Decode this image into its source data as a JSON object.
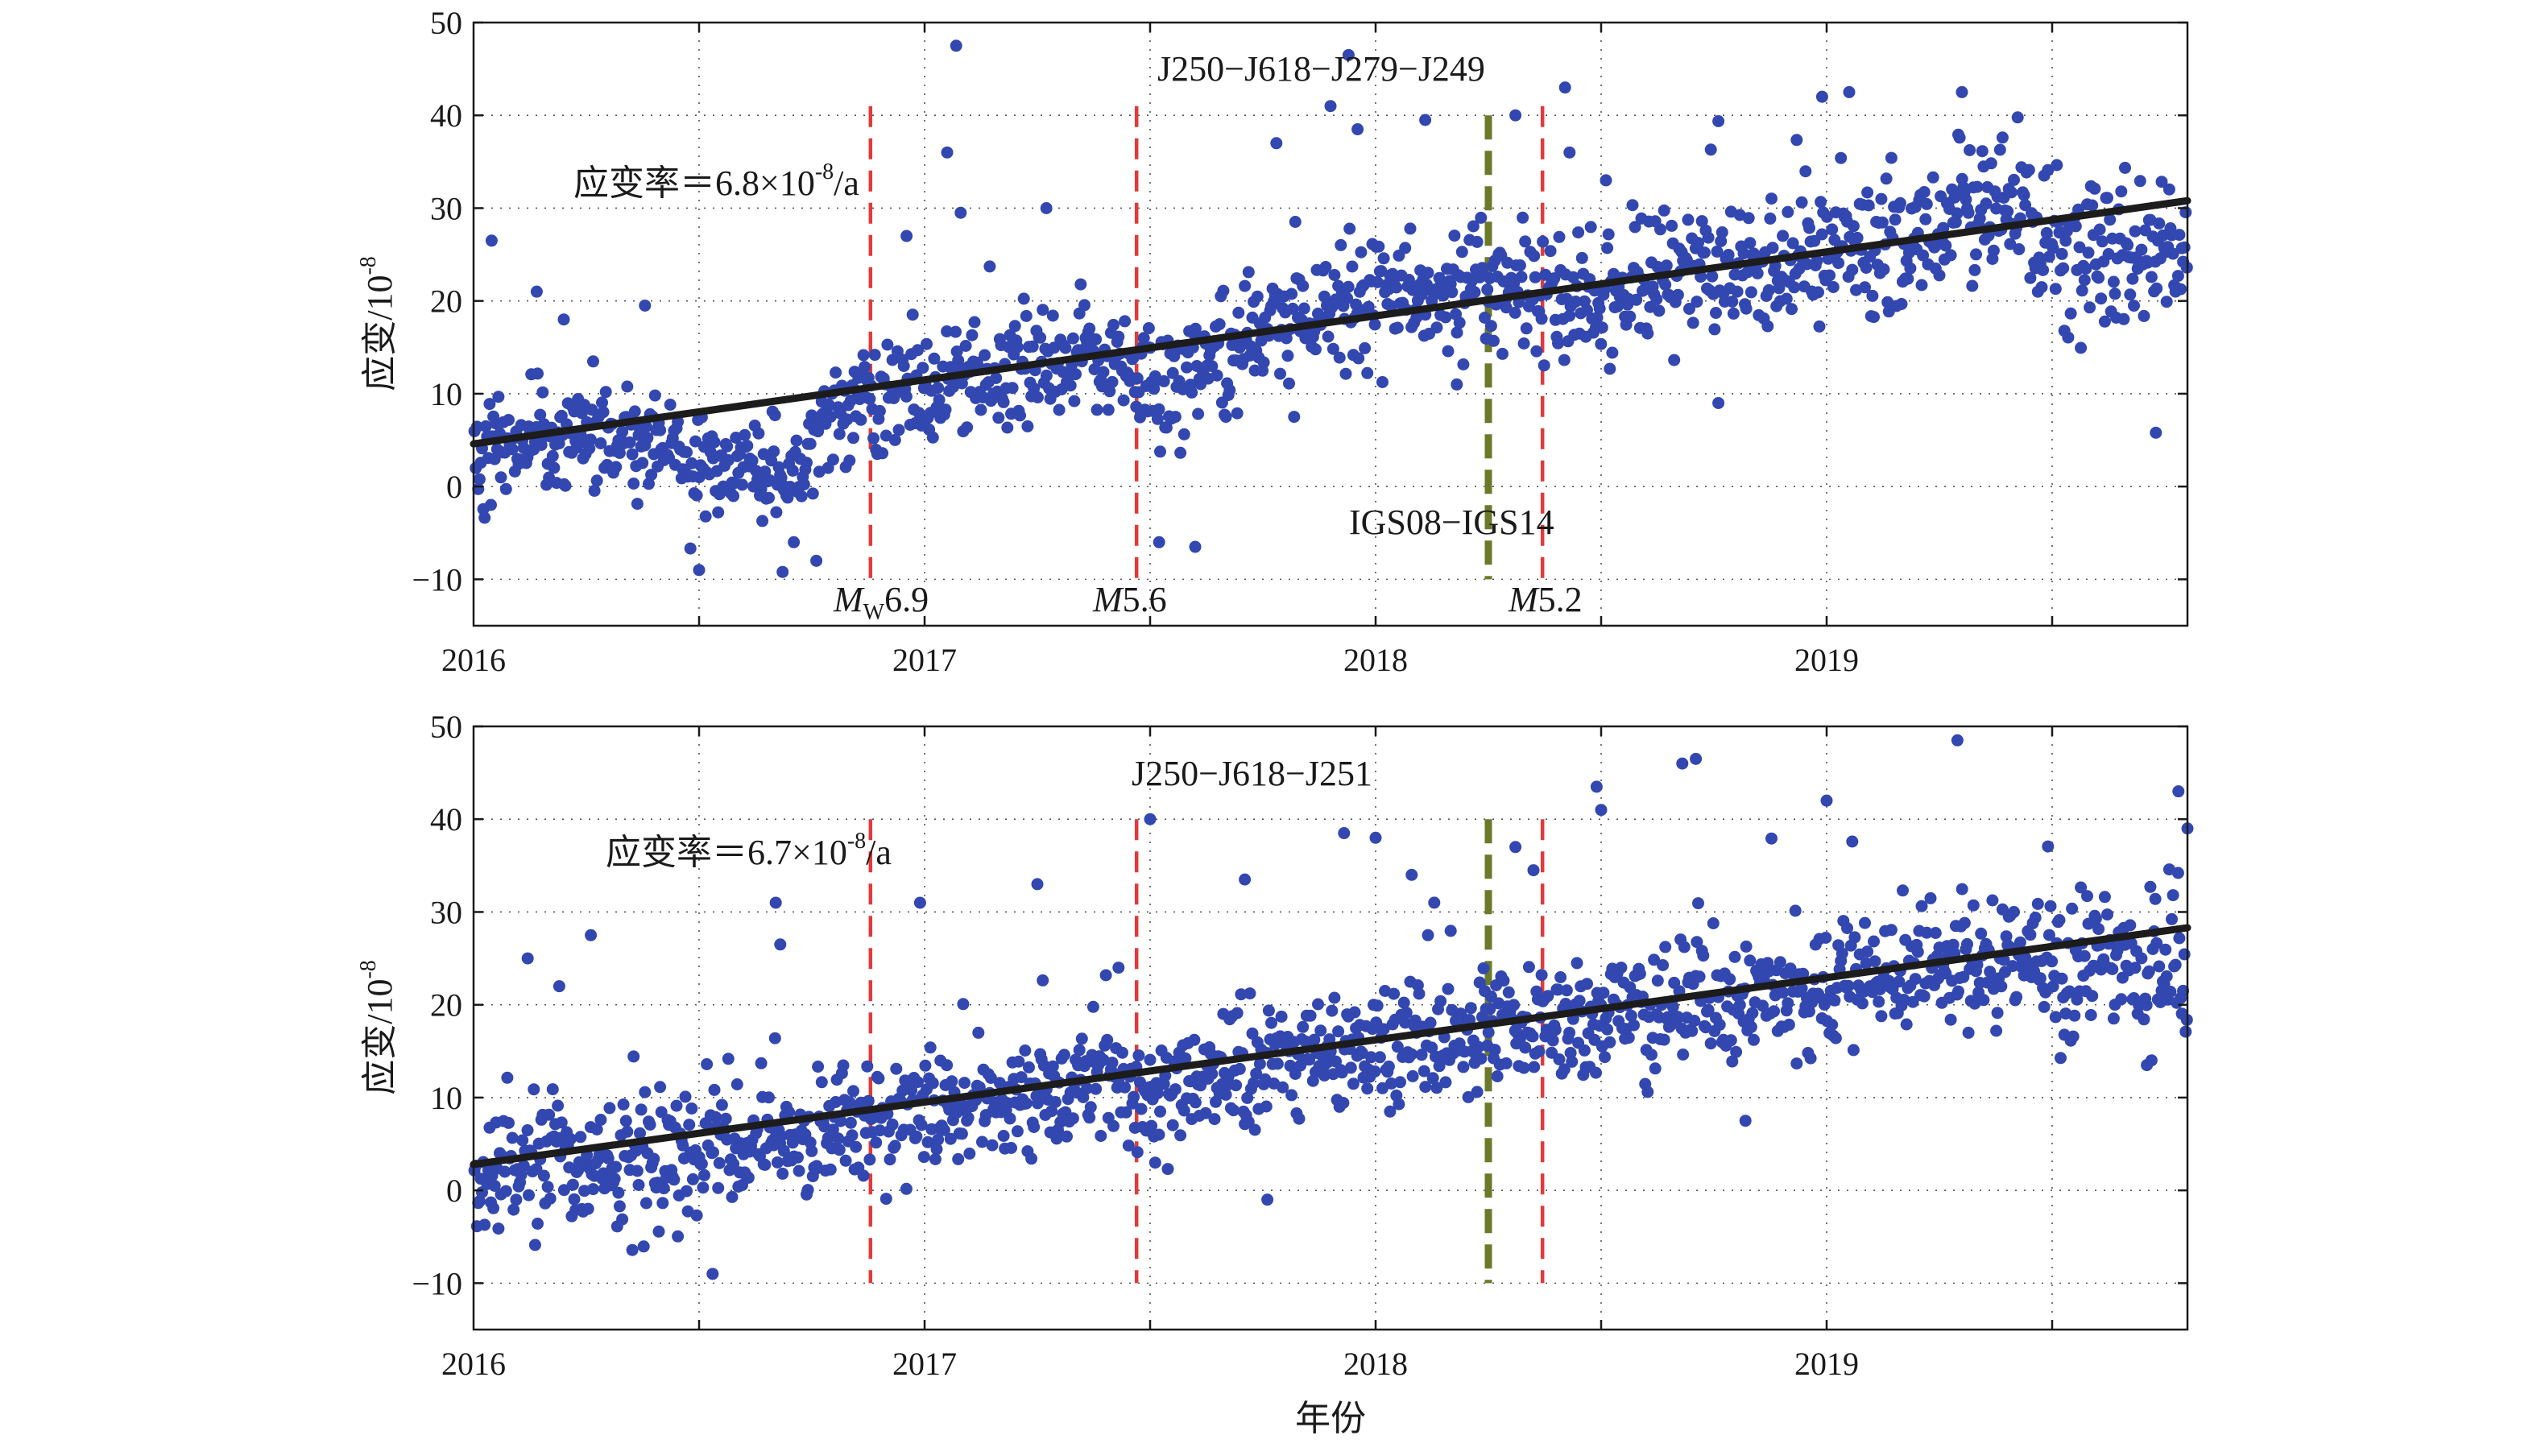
{
  "colors": {
    "points": "#3347b0",
    "trend": "#1c1c1c",
    "event_line": "#e23a3a",
    "frame_change_line": "#6b7a2a",
    "grid": "#555555"
  },
  "figure": {
    "xlabel": "年份",
    "ylabel_main": "应变/10",
    "ylabel_exp": "-8"
  },
  "chart_data": [
    {
      "type": "scatter",
      "title": "J250−J618−J279−J249",
      "rate_label": "应变率＝6.8×10",
      "rate_exp": "-8",
      "rate_unit": "/a",
      "xlim": [
        2016.0,
        2019.8
      ],
      "ylim": [
        -15,
        50
      ],
      "xticks": [
        2016,
        2017,
        2018,
        2019
      ],
      "xtick_labels": [
        "2016",
        "2017",
        "2018",
        "2019"
      ],
      "xgrid": [
        2016.5,
        2017,
        2017.5,
        2018,
        2018.5,
        2019,
        2019.5
      ],
      "yticks": [
        -10,
        0,
        10,
        20,
        30,
        40,
        50
      ],
      "ytick_labels": [
        "−10",
        "0",
        "10",
        "20",
        "30",
        "40",
        "50"
      ],
      "grid": true,
      "trend": {
        "x": [
          2016.0,
          2019.8
        ],
        "y": [
          4.6,
          30.8
        ]
      },
      "events": [
        {
          "x": 2016.88,
          "kind": "earthquake",
          "label_prefix": "M",
          "label_sub": "W",
          "label_value": "6.9"
        },
        {
          "x": 2017.47,
          "kind": "earthquake",
          "label_prefix": "M",
          "label_sub": "",
          "label_value": "5.6"
        },
        {
          "x": 2018.37,
          "kind": "earthquake",
          "label_prefix": "M",
          "label_sub": "",
          "label_value": "5.2"
        }
      ],
      "frame_change": {
        "x": 2018.25,
        "label": "IGS08−IGS14"
      },
      "outliers": [
        {
          "x": 2016.04,
          "y": 26.5
        },
        {
          "x": 2016.14,
          "y": 21
        },
        {
          "x": 2016.2,
          "y": 18
        },
        {
          "x": 2016.38,
          "y": 19.5
        },
        {
          "x": 2016.5,
          "y": -9
        },
        {
          "x": 2016.71,
          "y": -6
        },
        {
          "x": 2016.76,
          "y": -8
        },
        {
          "x": 2016.96,
          "y": 27
        },
        {
          "x": 2017.05,
          "y": 36
        },
        {
          "x": 2017.07,
          "y": 47.5
        },
        {
          "x": 2017.08,
          "y": 29.5
        },
        {
          "x": 2017.27,
          "y": 30
        },
        {
          "x": 2017.52,
          "y": -6
        },
        {
          "x": 2017.6,
          "y": -6.5
        },
        {
          "x": 2017.78,
          "y": 37
        },
        {
          "x": 2017.9,
          "y": 41
        },
        {
          "x": 2017.94,
          "y": 46.5
        },
        {
          "x": 2017.96,
          "y": 38.5
        },
        {
          "x": 2018.11,
          "y": 39.5
        },
        {
          "x": 2018.18,
          "y": 11
        },
        {
          "x": 2018.31,
          "y": 40
        },
        {
          "x": 2018.42,
          "y": 43
        },
        {
          "x": 2018.43,
          "y": 36
        },
        {
          "x": 2018.76,
          "y": 9
        },
        {
          "x": 2018.99,
          "y": 42
        },
        {
          "x": 2019.05,
          "y": 42.5
        },
        {
          "x": 2019.3,
          "y": 42.5
        },
        {
          "x": 2019.73,
          "y": 5.8
        }
      ]
    },
    {
      "type": "scatter",
      "title": "J250−J618−J251",
      "rate_label": "应变率＝6.7×10",
      "rate_exp": "-8",
      "rate_unit": "/a",
      "xlim": [
        2016.0,
        2019.8
      ],
      "ylim": [
        -15,
        50
      ],
      "xticks": [
        2016,
        2017,
        2018,
        2019
      ],
      "xtick_labels": [
        "2016",
        "2017",
        "2018",
        "2019"
      ],
      "xgrid": [
        2016.5,
        2017,
        2017.5,
        2018,
        2018.5,
        2019,
        2019.5
      ],
      "yticks": [
        -10,
        0,
        10,
        20,
        30,
        40,
        50
      ],
      "ytick_labels": [
        "−10",
        "0",
        "10",
        "20",
        "30",
        "40",
        "50"
      ],
      "grid": true,
      "trend": {
        "x": [
          2016.0,
          2019.8
        ],
        "y": [
          2.8,
          28.3
        ]
      },
      "events": [
        {
          "x": 2016.88,
          "kind": "earthquake"
        },
        {
          "x": 2017.47,
          "kind": "earthquake"
        },
        {
          "x": 2018.37,
          "kind": "earthquake"
        }
      ],
      "frame_change": {
        "x": 2018.25
      },
      "outliers": [
        {
          "x": 2016.12,
          "y": 25
        },
        {
          "x": 2016.19,
          "y": 22
        },
        {
          "x": 2016.26,
          "y": 27.5
        },
        {
          "x": 2016.53,
          "y": -9
        },
        {
          "x": 2016.67,
          "y": 31
        },
        {
          "x": 2016.68,
          "y": 26.5
        },
        {
          "x": 2016.99,
          "y": 31
        },
        {
          "x": 2017.25,
          "y": 33
        },
        {
          "x": 2017.43,
          "y": 24
        },
        {
          "x": 2017.5,
          "y": 40
        },
        {
          "x": 2017.71,
          "y": 33.5
        },
        {
          "x": 2017.76,
          "y": -1
        },
        {
          "x": 2017.93,
          "y": 38.5
        },
        {
          "x": 2018.0,
          "y": 38
        },
        {
          "x": 2018.08,
          "y": 34
        },
        {
          "x": 2018.31,
          "y": 37
        },
        {
          "x": 2018.35,
          "y": 34.5
        },
        {
          "x": 2018.49,
          "y": 43.5
        },
        {
          "x": 2018.5,
          "y": 41
        },
        {
          "x": 2018.68,
          "y": 46
        },
        {
          "x": 2018.71,
          "y": 46.5
        },
        {
          "x": 2018.82,
          "y": 7.5
        },
        {
          "x": 2019.0,
          "y": 42
        },
        {
          "x": 2019.29,
          "y": 48.5
        },
        {
          "x": 2019.71,
          "y": 13.5
        },
        {
          "x": 2019.78,
          "y": 43
        },
        {
          "x": 2019.8,
          "y": 39
        }
      ]
    }
  ]
}
